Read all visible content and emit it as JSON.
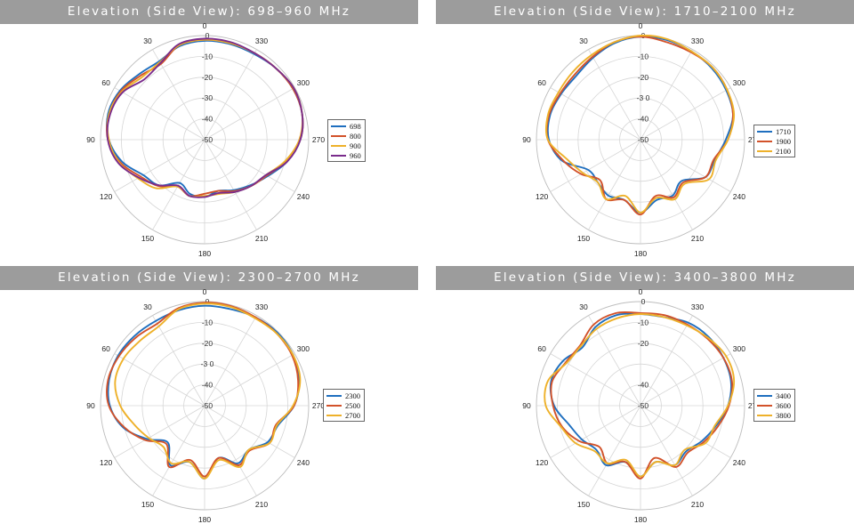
{
  "chart_data": [
    {
      "type": "polar",
      "title": "Elevation (Side View): 698–960 MHz",
      "angle_ticks": [
        "0",
        "30",
        "60",
        "90",
        "120",
        "150",
        "180",
        "210",
        "240",
        "270",
        "300",
        "330"
      ],
      "radial_ticks": [
        "0",
        "-10",
        "-20",
        "-30",
        "-40",
        "-50"
      ],
      "radial_range": [
        -50,
        0
      ],
      "legend_placement": "right",
      "series": [
        {
          "name": "698",
          "color": "#1f6fbf",
          "values": [
            -2.5,
            -3.5,
            -6.5,
            -5.5,
            -3,
            -2,
            -4,
            -9,
            -16,
            -19,
            -26,
            -23,
            -22.5,
            -24.5,
            -22,
            -19,
            -15,
            -9,
            -4,
            -1.5,
            -1,
            -1.5,
            -2.5,
            -2.5
          ]
        },
        {
          "name": "800",
          "color": "#d2522a",
          "values": [
            -2,
            -3,
            -8,
            -6.5,
            -3.5,
            -2.5,
            -3.5,
            -8,
            -14.5,
            -18.5,
            -24,
            -22,
            -24,
            -24.5,
            -21.5,
            -18.5,
            -15.5,
            -9.5,
            -4,
            -1.5,
            -1,
            -1.5,
            -2,
            -2
          ]
        },
        {
          "name": "900",
          "color": "#eeb12a",
          "values": [
            -2,
            -3,
            -7,
            -7.5,
            -4,
            -2.5,
            -4,
            -7.5,
            -13,
            -17,
            -24,
            -22,
            -23,
            -23,
            -21,
            -18.5,
            -16,
            -10,
            -4.5,
            -1.5,
            -0.5,
            -1.5,
            -2,
            -2
          ]
        },
        {
          "name": "960",
          "color": "#7a2c8c",
          "values": [
            -1.5,
            -2.5,
            -7.5,
            -9,
            -4.5,
            -3,
            -3.5,
            -7,
            -13.5,
            -19,
            -24.5,
            -22,
            -22.5,
            -23.5,
            -21,
            -18.5,
            -16,
            -9,
            -4,
            -1.5,
            -0.5,
            -1.5,
            -2,
            -1.5
          ]
        }
      ]
    },
    {
      "type": "polar",
      "title": "Elevation (Side View): 1710–2100 MHz",
      "angle_ticks": [
        "0",
        "30",
        "60",
        "90",
        "120",
        "150",
        "180",
        "210",
        "240",
        "270",
        "300",
        "330"
      ],
      "radial_ticks": [
        "0",
        "-10",
        "-20",
        "-3 0",
        "-40",
        "-50"
      ],
      "radial_range": [
        -50,
        0
      ],
      "legend_placement": "right",
      "series": [
        {
          "name": "1710",
          "color": "#1f6fbf",
          "values": [
            -0.5,
            -2,
            -4.5,
            -6.5,
            -6,
            -5,
            -6,
            -11,
            -21,
            -21,
            -19,
            -20,
            -15,
            -20,
            -19,
            -22,
            -14,
            -13,
            -9,
            -4,
            -2.5,
            -1.5,
            -1,
            -0.5
          ]
        },
        {
          "name": "1900",
          "color": "#d2522a",
          "values": [
            -0.5,
            -1.5,
            -4,
            -5.5,
            -5.5,
            -4.5,
            -5.5,
            -11.5,
            -17,
            -22.5,
            -17,
            -20,
            -14,
            -22,
            -18,
            -21,
            -14,
            -13.5,
            -8,
            -4,
            -2,
            -1,
            -1.5,
            -1.5
          ]
        },
        {
          "name": "2100",
          "color": "#eeb12a",
          "values": [
            0,
            -1.5,
            -3,
            -4,
            -4.5,
            -4,
            -5.5,
            -13.5,
            -18,
            -21,
            -17,
            -22,
            -15,
            -21,
            -17,
            -20,
            -12,
            -12.5,
            -8,
            -3.5,
            -2,
            -1,
            -1,
            0
          ]
        }
      ]
    },
    {
      "type": "polar",
      "title": "Elevation (Side View): 2300–2700 MHz",
      "angle_ticks": [
        "0",
        "30",
        "60",
        "90",
        "120",
        "150",
        "180",
        "210",
        "240",
        "270",
        "300",
        "330"
      ],
      "radial_ticks": [
        "0",
        "-10",
        "-20",
        "-3 0",
        "-40",
        "-50"
      ],
      "radial_range": [
        -50,
        0
      ],
      "legend_placement": "right",
      "series": [
        {
          "name": "2300",
          "color": "#1f6fbf",
          "values": [
            -2,
            -2.5,
            -3,
            -2.5,
            -2,
            -2.5,
            -4.5,
            -9.5,
            -18,
            -25,
            -17,
            -22,
            -15,
            -24,
            -18,
            -20,
            -15,
            -13.5,
            -7,
            -3,
            -1,
            -0.5,
            -1,
            -2
          ]
        },
        {
          "name": "2500",
          "color": "#d2522a",
          "values": [
            -0.5,
            -1.5,
            -4.5,
            -3.5,
            -2.5,
            -2,
            -4,
            -10,
            -17,
            -24,
            -16,
            -23,
            -16,
            -24,
            -17,
            -19.5,
            -14,
            -14.5,
            -7,
            -3.5,
            -1.5,
            -1,
            -1,
            -0.5
          ]
        },
        {
          "name": "2700",
          "color": "#eeb12a",
          "values": [
            -1,
            -2,
            -6,
            -6,
            -5,
            -5.5,
            -9.5,
            -15,
            -19,
            -22,
            -18,
            -22,
            -15,
            -23,
            -16,
            -20,
            -14,
            -14,
            -7.5,
            -2.5,
            -1,
            -1,
            -1.5,
            -1
          ]
        }
      ]
    },
    {
      "type": "polar",
      "title": "Elevation (Side View): 3400–3800 MHz",
      "angle_ticks": [
        "0",
        "30",
        "60",
        "90",
        "120",
        "150",
        "180",
        "210",
        "240",
        "270",
        "300",
        "330"
      ],
      "radial_ticks": [
        "0",
        "-10",
        "-20",
        "-40",
        "-50"
      ],
      "radial_range": [
        -50,
        0
      ],
      "legend_placement": "right",
      "series": [
        {
          "name": "3400",
          "color": "#1f6fbf",
          "values": [
            -6,
            -5,
            -6.5,
            -10.5,
            -7,
            -5.5,
            -8.5,
            -14.5,
            -17.5,
            -20,
            -17,
            -22,
            -16,
            -22,
            -17,
            -19,
            -16,
            -12.5,
            -8,
            -5,
            -4,
            -3.5,
            -4,
            -6
          ]
        },
        {
          "name": "3600",
          "color": "#d2522a",
          "values": [
            -5.5,
            -4,
            -5,
            -9,
            -8.5,
            -6,
            -8,
            -11,
            -16,
            -22,
            -18,
            -22,
            -15,
            -24,
            -16,
            -18,
            -15,
            -11.5,
            -7.5,
            -4.5,
            -4,
            -4.5,
            -5,
            -5
          ]
        },
        {
          "name": "3800",
          "color": "#eeb12a",
          "values": [
            -6,
            -6.5,
            -7.5,
            -9.5,
            -9,
            -4,
            -4.5,
            -10.5,
            -14,
            -19,
            -18,
            -23,
            -16,
            -22,
            -17,
            -20,
            -14,
            -13,
            -8,
            -3.5,
            -2.5,
            -4,
            -5.5,
            -6
          ]
        }
      ]
    }
  ]
}
